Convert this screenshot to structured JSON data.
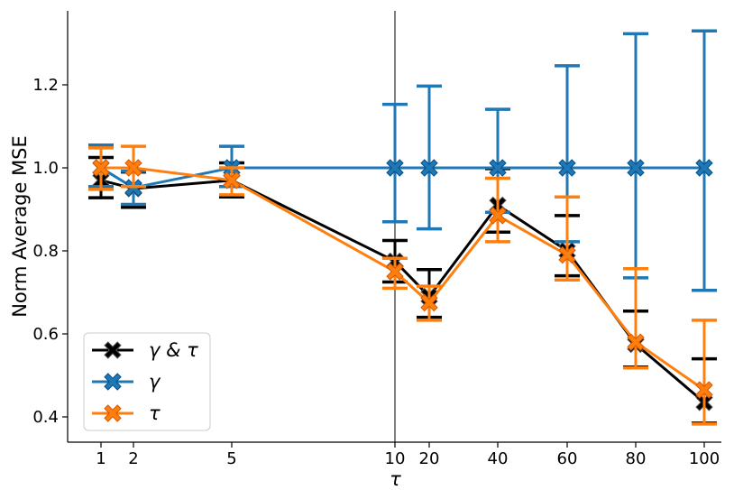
{
  "chart_data": {
    "type": "line",
    "title": "",
    "xlabel": "τ",
    "ylabel": "Norm Average MSE",
    "x_ticks": [
      "1",
      "2",
      "5",
      "10",
      "20",
      "40",
      "60",
      "80",
      "100"
    ],
    "y_ticks": [
      "0.4",
      "0.6",
      "0.8",
      "1.0",
      "1.2"
    ],
    "ylim": [
      0.34,
      1.38
    ],
    "grid": false,
    "legend_position": "lower-left",
    "series": [
      {
        "name": "γ & τ",
        "color": "#000000",
        "values": [
          0.97,
          0.95,
          0.97,
          0.775,
          0.69,
          0.91,
          0.8,
          0.575,
          0.435
        ],
        "err_low": [
          0.928,
          0.905,
          0.93,
          0.725,
          0.64,
          0.845,
          0.74,
          0.52,
          0.385
        ],
        "err_high": [
          1.025,
          0.99,
          1.012,
          0.825,
          0.755,
          0.998,
          0.885,
          0.655,
          0.54
        ]
      },
      {
        "name": "γ",
        "color": "#1f77b4",
        "values": [
          1.0,
          0.952,
          1.0,
          1.0,
          1.0,
          1.0,
          1.0,
          1.0,
          1.0
        ],
        "err_low": [
          0.955,
          0.912,
          0.955,
          0.87,
          0.853,
          0.893,
          0.822,
          0.735,
          0.705
        ],
        "err_high": [
          1.055,
          0.992,
          1.052,
          1.153,
          1.197,
          1.141,
          1.246,
          1.323,
          1.33
        ]
      },
      {
        "name": "τ",
        "color": "#ff7f0e",
        "values": [
          1.0,
          1.0,
          0.97,
          0.75,
          0.675,
          0.885,
          0.79,
          0.58,
          0.465
        ],
        "err_low": [
          0.948,
          0.955,
          0.935,
          0.71,
          0.633,
          0.822,
          0.73,
          0.518,
          0.383
        ],
        "err_high": [
          1.048,
          1.052,
          1.0,
          0.782,
          0.715,
          0.975,
          0.93,
          0.757,
          0.633
        ]
      }
    ]
  }
}
